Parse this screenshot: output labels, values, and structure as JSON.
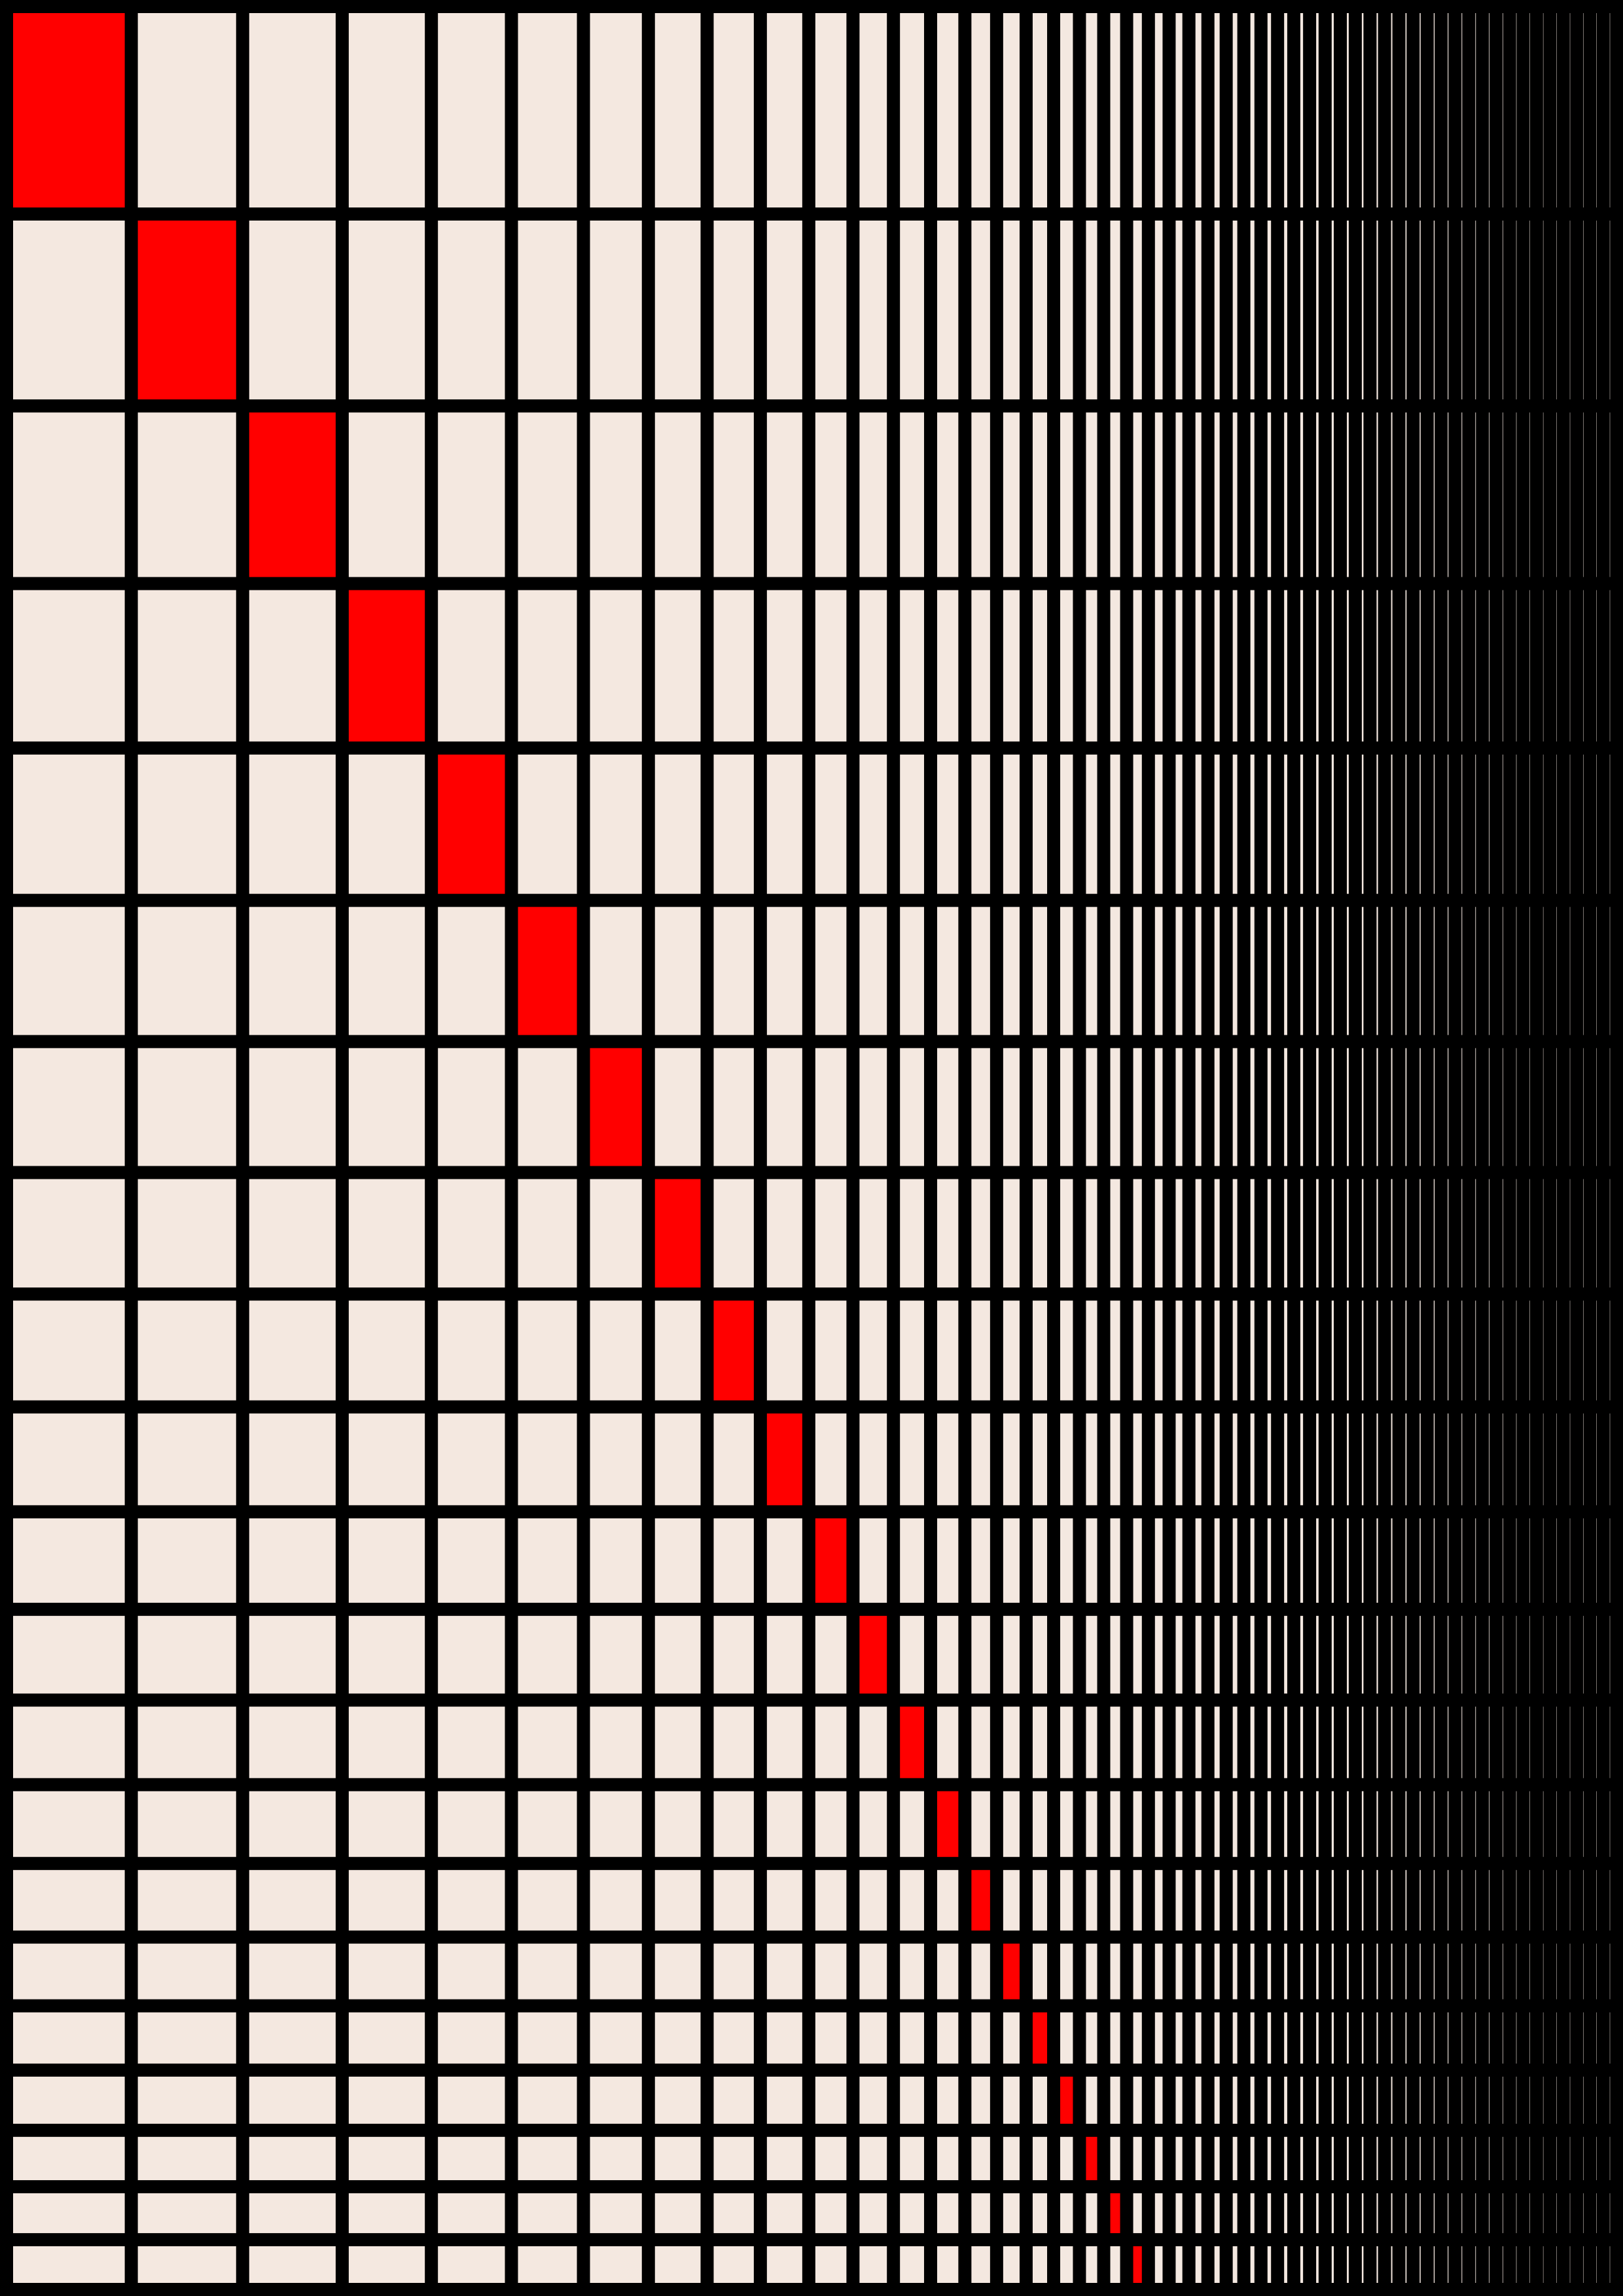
{
  "artwork": {
    "colors": {
      "background": "#000000",
      "cell": "#F4E8E0",
      "highlight": "#FF0000"
    },
    "grid": {
      "highlight_rule": "diagonal",
      "row_ratio": 0.92,
      "row_count": 21,
      "column_ratio": 0.88,
      "column_count": 52
    }
  }
}
